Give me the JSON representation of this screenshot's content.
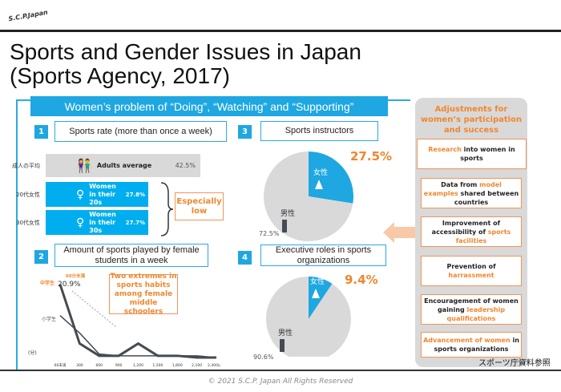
{
  "logo": "S.C.P.Japan",
  "title": [
    "Sports and Gender Issues in Japan",
    "(Sports Agency, 2017)"
  ],
  "main_header": "Women’s problem of “Doing”, “Watching” and “Supporting”",
  "sections": [
    {
      "num": "1",
      "label": "Sports rate (more than once a week)"
    },
    {
      "num": "2",
      "label": "Amount of sports played by female students in a week"
    },
    {
      "num": "3",
      "label": "Sports instructors"
    },
    {
      "num": "4",
      "label": "Executive roles in sports organizations"
    }
  ],
  "sports_rate": [
    {
      "row_label": "成人の平均",
      "label": "Adults average",
      "value": "42.5%",
      "pct": 42.5
    },
    {
      "row_label": "20代女性",
      "label": "Women in their 20s",
      "value": "27.8%",
      "pct": 27.8
    },
    {
      "row_label": "30代女性",
      "label": "Women in their 30s",
      "value": "27.7%",
      "pct": 27.7
    }
  ],
  "especially_low": "Especially low",
  "two_extremes": "Two extremes in sports habits among female middle schoolers",
  "chart_data": [
    {
      "type": "line",
      "title": "Amount of sports played by female students in a week",
      "ylabel": "(分)",
      "annotation": "60分未満",
      "annotation_value": "20.9%",
      "categories": [
        "60未満",
        "300",
        "600",
        "900",
        "1,200",
        "1,500",
        "1,800",
        "2,100",
        "2,400以上"
      ],
      "series": [
        {
          "name": "中学生",
          "values": [
            20.9,
            4,
            0.5,
            0.5,
            4,
            0.5,
            0.5,
            0,
            0
          ]
        },
        {
          "name": "小学生",
          "values": [
            12,
            7,
            1,
            0.5,
            0.5,
            0.5,
            0.5,
            0.5,
            0
          ]
        }
      ],
      "ylim": [
        0,
        22
      ]
    },
    {
      "type": "pie",
      "title": "Sports instructors",
      "slices": [
        {
          "name": "女性",
          "value": 27.5,
          "label": "27.5%"
        },
        {
          "name": "男性",
          "value": 72.5,
          "label": "72.5%"
        }
      ]
    },
    {
      "type": "pie",
      "title": "Executive roles in sports organizations",
      "slices": [
        {
          "name": "女性",
          "value": 9.4,
          "label": "9.4%"
        },
        {
          "name": "男性",
          "value": 90.6,
          "label": "90.6%"
        }
      ]
    }
  ],
  "panel": {
    "title": "Adjustments for women’s participation and success",
    "items": [
      [
        {
          "t": "Research",
          "o": true
        },
        {
          "t": " into women in sports",
          "o": false
        }
      ],
      [
        {
          "t": "Data from ",
          "o": false
        },
        {
          "t": "model examples",
          "o": true
        },
        {
          "t": " shared between countries",
          "o": false
        }
      ],
      [
        {
          "t": "Improvement of accessibility of ",
          "o": false
        },
        {
          "t": "sports facilities",
          "o": true
        }
      ],
      [
        {
          "t": "Prevention of ",
          "o": false
        },
        {
          "t": "harrassment",
          "o": true
        }
      ],
      [
        {
          "t": "Encouragement of women gaining ",
          "o": false
        },
        {
          "t": "leadership qualifications",
          "o": true
        }
      ],
      [
        {
          "t": "Advancement of women",
          "o": true
        },
        {
          "t": " in sports organizations",
          "o": false
        }
      ]
    ]
  },
  "source": "スポーツ庁資料参照",
  "footer": "© 2021 S.C.P. Japan All Rights Reserved",
  "colors": {
    "blue": "#1ea7e1",
    "orange": "#f0862e",
    "gray": "#d9d9d9",
    "dark": "#444b52"
  }
}
